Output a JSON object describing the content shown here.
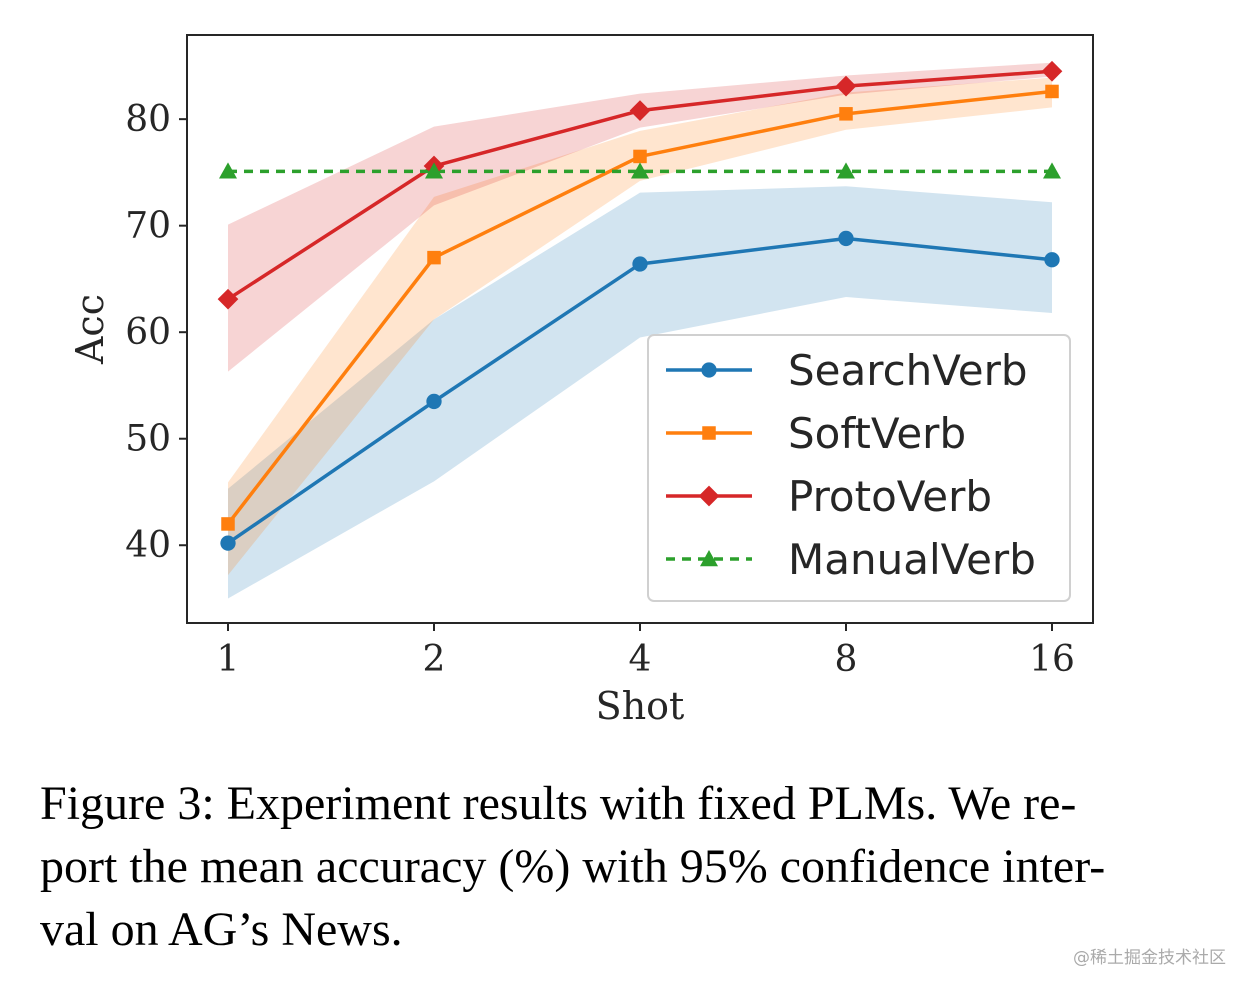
{
  "chart_data": {
    "type": "line",
    "categories": [
      "1",
      "2",
      "4",
      "8",
      "16"
    ],
    "xlabel": "Shot",
    "ylabel": "Acc",
    "yticks": [
      40,
      50,
      60,
      70,
      80
    ],
    "ylim": [
      32.7,
      87.9
    ],
    "legend_position": "lower-right",
    "series": [
      {
        "name": "SearchVerb",
        "color": "#1f77b4",
        "marker": "circle",
        "linestyle": "solid",
        "values": [
          40.2,
          53.5,
          66.4,
          68.8,
          66.8
        ],
        "ci_low": [
          35.0,
          46.0,
          59.5,
          63.3,
          61.8
        ],
        "ci_high": [
          45.3,
          61.2,
          73.1,
          73.7,
          72.2
        ]
      },
      {
        "name": "SoftVerb",
        "color": "#ff7f0e",
        "marker": "square",
        "linestyle": "solid",
        "values": [
          42.0,
          67.0,
          76.5,
          80.5,
          82.6
        ],
        "ci_low": [
          37.2,
          61.2,
          74.2,
          79.0,
          81.1
        ],
        "ci_high": [
          45.9,
          72.7,
          78.9,
          82.5,
          83.9
        ]
      },
      {
        "name": "ProtoVerb",
        "color": "#d62728",
        "marker": "diamond",
        "linestyle": "solid",
        "values": [
          63.1,
          75.6,
          80.8,
          83.1,
          84.5
        ],
        "ci_low": [
          56.3,
          71.9,
          79.2,
          82.3,
          84.0
        ],
        "ci_high": [
          70.1,
          79.3,
          82.4,
          84.1,
          85.3
        ]
      },
      {
        "name": "ManualVerb",
        "color": "#2ca02c",
        "marker": "triangle",
        "linestyle": "dashed",
        "values": [
          75.1,
          75.1,
          75.1,
          75.1,
          75.1
        ]
      }
    ]
  },
  "caption": {
    "line1": "Figure 3: Experiment results with fixed PLMs. We re-",
    "line2": "port the mean accuracy (%) with 95% confidence inter-",
    "line3": "val on AG’s News."
  },
  "watermark": "@稀土掘金技术社区"
}
